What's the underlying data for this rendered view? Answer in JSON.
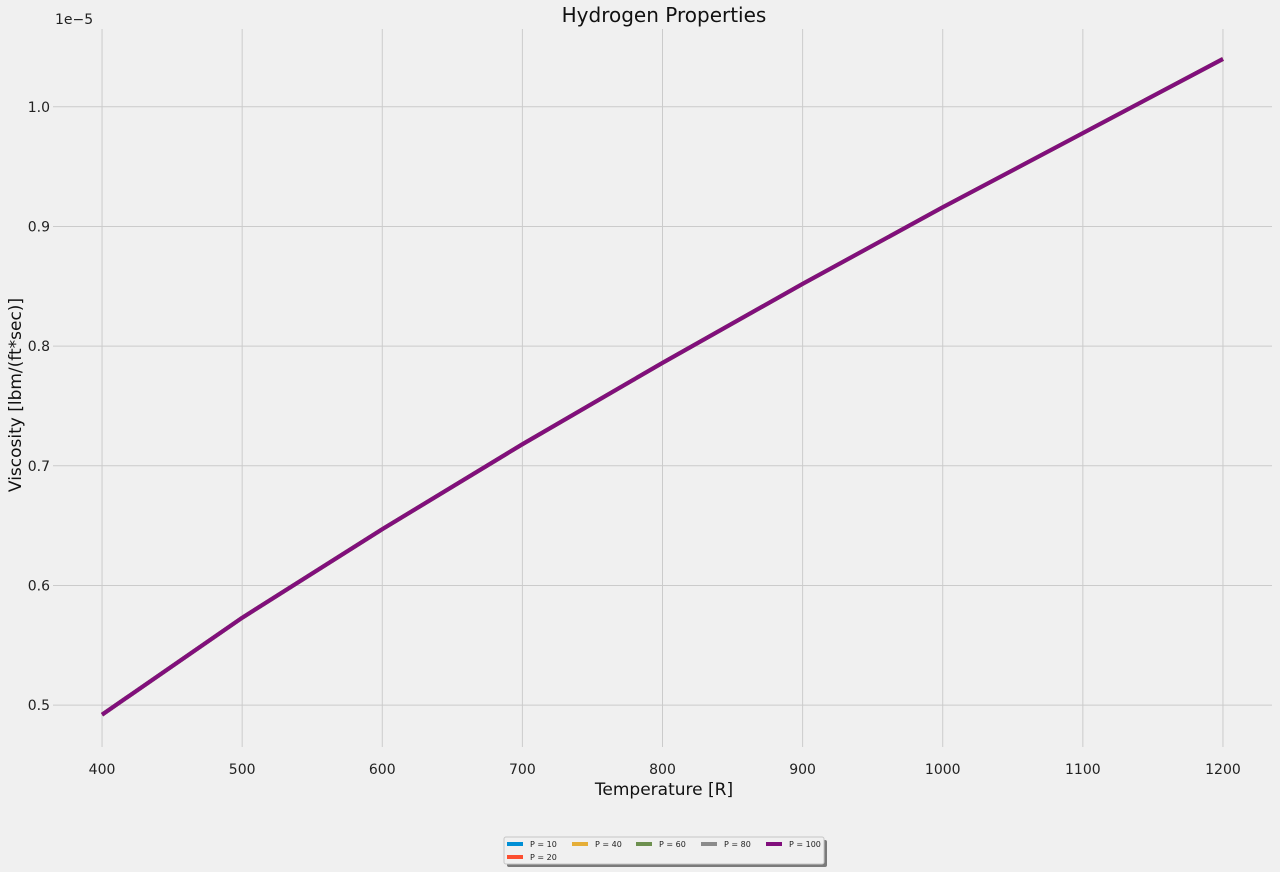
{
  "chart_data": {
    "type": "line",
    "title": "Hydrogen Properties",
    "xlabel": "Temperature [R]",
    "ylabel": "Viscosity [lbm/(ft*sec)]",
    "y_offset_label": "1e−5",
    "xlim": [
      365,
      1235
    ],
    "ylim": [
      0.465,
      1.065
    ],
    "x_ticks": [
      400,
      500,
      600,
      700,
      800,
      900,
      1000,
      1100,
      1200
    ],
    "y_ticks": [
      0.5,
      0.6,
      0.7,
      0.8,
      0.9,
      1.0
    ],
    "grid": true,
    "legend_position": "bottom-center",
    "x": [
      400,
      500,
      600,
      700,
      800,
      900,
      1000,
      1100,
      1200
    ],
    "series": [
      {
        "name": "P = 10",
        "color": "#008fd5",
        "values": [
          0.492,
          0.573,
          0.647,
          0.718,
          0.786,
          0.852,
          0.916,
          0.978,
          1.04
        ]
      },
      {
        "name": "P = 20",
        "color": "#fc4f30",
        "values": [
          0.492,
          0.573,
          0.647,
          0.718,
          0.786,
          0.852,
          0.916,
          0.978,
          1.04
        ]
      },
      {
        "name": "P = 40",
        "color": "#e5ae38",
        "values": [
          0.492,
          0.573,
          0.647,
          0.718,
          0.786,
          0.852,
          0.916,
          0.978,
          1.04
        ]
      },
      {
        "name": "P = 60",
        "color": "#6d904f",
        "values": [
          0.492,
          0.573,
          0.647,
          0.718,
          0.786,
          0.852,
          0.916,
          0.978,
          1.04
        ]
      },
      {
        "name": "P = 80",
        "color": "#8b8b8b",
        "values": [
          0.492,
          0.573,
          0.647,
          0.718,
          0.786,
          0.852,
          0.916,
          0.978,
          1.04
        ]
      },
      {
        "name": "P = 100",
        "color": "#810f7c",
        "values": [
          0.492,
          0.573,
          0.647,
          0.718,
          0.786,
          0.852,
          0.916,
          0.978,
          1.04
        ]
      }
    ]
  }
}
